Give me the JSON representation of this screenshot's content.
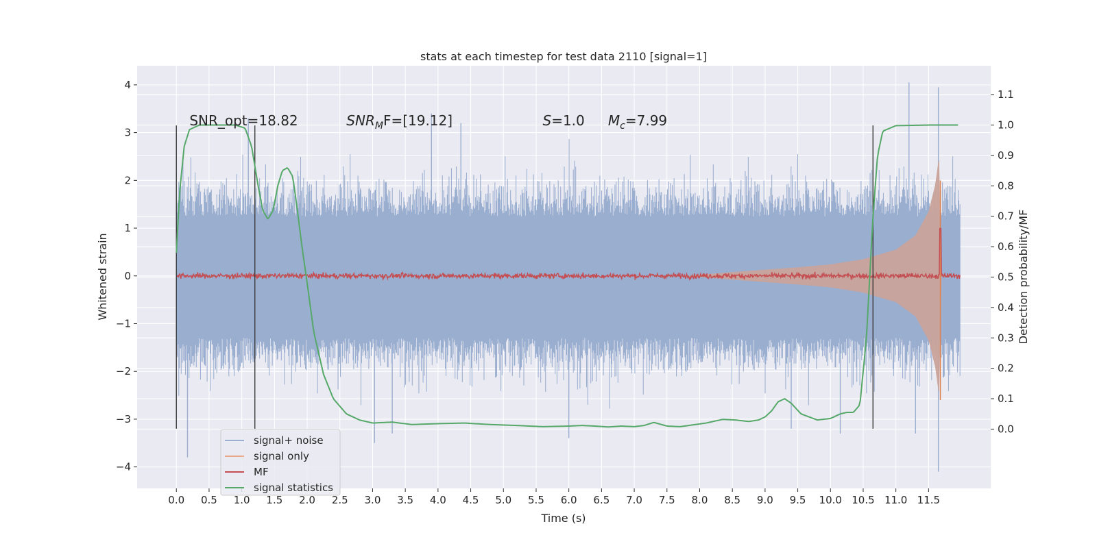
{
  "chart_data": {
    "type": "line",
    "title": "stats at each timestep for test data 2110 [signal=1]",
    "xlabel": "Time (s)",
    "ylabel": "Whitened strain",
    "y2label": "Detection probability/MF",
    "xlim": [
      -0.6,
      12.45
    ],
    "ylim": [
      -4.45,
      4.4
    ],
    "y2lim": [
      -0.195,
      1.195
    ],
    "x_ticks": [
      0.0,
      0.5,
      1.0,
      1.5,
      2.0,
      2.5,
      3.0,
      3.5,
      4.0,
      4.5,
      5.0,
      5.5,
      6.0,
      6.5,
      7.0,
      7.5,
      8.0,
      8.5,
      9.0,
      9.5,
      10.0,
      10.5,
      11.0,
      11.5
    ],
    "x_tick_labels": [
      "0.0",
      "0.5",
      "1.0",
      "1.5",
      "2.0",
      "2.5",
      "3.0",
      "3.5",
      "4.0",
      "4.5",
      "5.0",
      "5.5",
      "6.0",
      "6.5",
      "7.0",
      "7.5",
      "8.0",
      "8.5",
      "9.0",
      "9.5",
      "10.0",
      "10.5",
      "11.0",
      "11.5"
    ],
    "y_ticks": [
      -4,
      -3,
      -2,
      -1,
      0,
      1,
      2,
      3,
      4
    ],
    "y_tick_labels": [
      "−4",
      "−3",
      "−2",
      "−1",
      "0",
      "1",
      "2",
      "3",
      "4"
    ],
    "y2_ticks": [
      0.0,
      0.1,
      0.2,
      0.3,
      0.4,
      0.5,
      0.6,
      0.7,
      0.8,
      0.9,
      1.0,
      1.1
    ],
    "y2_tick_labels": [
      "0.0",
      "0.1",
      "0.2",
      "0.3",
      "0.4",
      "0.5",
      "0.6",
      "0.7",
      "0.8",
      "0.9",
      "1.0",
      "1.1"
    ],
    "grid": true,
    "legend_position": "lower-left",
    "annotations": [
      {
        "x": 0.2,
        "y": 3.15,
        "text": "SNR_opt=18.82"
      },
      {
        "x": 2.6,
        "y": 3.15,
        "text": "SNR",
        "sub": "M",
        "tail": "F=[19.12]",
        "italic_base": true
      },
      {
        "x": 5.6,
        "y": 3.15,
        "text": "S",
        "tail": "=1.0",
        "italic_base": true
      },
      {
        "x": 6.6,
        "y": 3.15,
        "text": "M",
        "sub": "c",
        "tail": "=7.99",
        "italic_base": true
      }
    ],
    "vlines": [
      {
        "x": 0.0,
        "y_from": -3.2,
        "y_to": 3.15
      },
      {
        "x": 1.2,
        "y_from": -3.2,
        "y_to": 3.15
      },
      {
        "x": 10.65,
        "y_from": -3.2,
        "y_to": 3.15
      }
    ],
    "noise_spikes": [
      {
        "x": 0.17,
        "y": -3.8
      },
      {
        "x": 1.1,
        "y": 3.3
      },
      {
        "x": 3.03,
        "y": -3.5
      },
      {
        "x": 3.3,
        "y": -3.3
      },
      {
        "x": 3.9,
        "y": 3.4
      },
      {
        "x": 4.35,
        "y": 3.2
      },
      {
        "x": 6.0,
        "y": -3.4
      },
      {
        "x": 9.4,
        "y": -3.2
      },
      {
        "x": 10.15,
        "y": -3.3
      },
      {
        "x": 11.2,
        "y": 4.05
      },
      {
        "x": 11.3,
        "y": -3.3
      },
      {
        "x": 11.65,
        "y": 3.95
      },
      {
        "x": 11.65,
        "y": -4.1
      }
    ],
    "series": [
      {
        "name": "signal+ noise",
        "color": "#4c72b0",
        "axis": "left",
        "kind": "noise_band",
        "x_range": [
          0.0,
          11.98
        ],
        "typical_envelope": [
          -2.1,
          2.0
        ]
      },
      {
        "name": "signal only",
        "color": "#dd8452",
        "axis": "left",
        "kind": "chirp_envelope",
        "x": [
          7.8,
          8.5,
          9.0,
          9.5,
          10.0,
          10.5,
          11.0,
          11.3,
          11.5,
          11.6,
          11.66,
          11.7
        ],
        "amp": [
          0.0,
          0.08,
          0.13,
          0.18,
          0.24,
          0.35,
          0.55,
          0.85,
          1.35,
          1.9,
          2.5,
          0.0
        ]
      },
      {
        "name": "MF",
        "color": "#c44e52",
        "axis": "right",
        "kind": "noisy_line",
        "x_range": [
          0.0,
          11.98
        ],
        "baseline": 0.5,
        "peak": {
          "x": 11.68,
          "y": 0.66
        }
      },
      {
        "name": "signal statistics",
        "color": "#55a868",
        "axis": "right",
        "x": [
          0.0,
          0.05,
          0.12,
          0.2,
          0.35,
          0.6,
          0.9,
          1.05,
          1.15,
          1.25,
          1.32,
          1.4,
          1.48,
          1.55,
          1.62,
          1.7,
          1.78,
          1.85,
          1.92,
          2.0,
          2.1,
          2.25,
          2.4,
          2.6,
          2.8,
          3.0,
          3.3,
          3.6,
          4.0,
          4.4,
          4.8,
          5.2,
          5.6,
          6.0,
          6.2,
          6.4,
          6.6,
          6.8,
          7.0,
          7.15,
          7.3,
          7.5,
          7.7,
          7.9,
          8.1,
          8.35,
          8.55,
          8.75,
          8.9,
          9.0,
          9.1,
          9.2,
          9.3,
          9.4,
          9.55,
          9.8,
          10.0,
          10.15,
          10.25,
          10.35,
          10.45,
          10.55,
          10.65,
          10.72,
          10.8,
          11.0,
          11.5,
          11.95
        ],
        "y": [
          0.58,
          0.78,
          0.93,
          0.985,
          1.0,
          1.0,
          1.0,
          0.99,
          0.93,
          0.8,
          0.72,
          0.69,
          0.72,
          0.8,
          0.85,
          0.86,
          0.83,
          0.72,
          0.6,
          0.48,
          0.32,
          0.18,
          0.1,
          0.05,
          0.03,
          0.02,
          0.023,
          0.015,
          0.018,
          0.02,
          0.015,
          0.012,
          0.008,
          0.01,
          0.012,
          0.01,
          0.007,
          0.01,
          0.008,
          0.012,
          0.022,
          0.01,
          0.008,
          0.014,
          0.02,
          0.032,
          0.03,
          0.025,
          0.03,
          0.04,
          0.06,
          0.09,
          0.1,
          0.085,
          0.05,
          0.03,
          0.035,
          0.05,
          0.055,
          0.055,
          0.08,
          0.3,
          0.7,
          0.9,
          0.98,
          0.998,
          1.0,
          1.0
        ]
      }
    ]
  }
}
